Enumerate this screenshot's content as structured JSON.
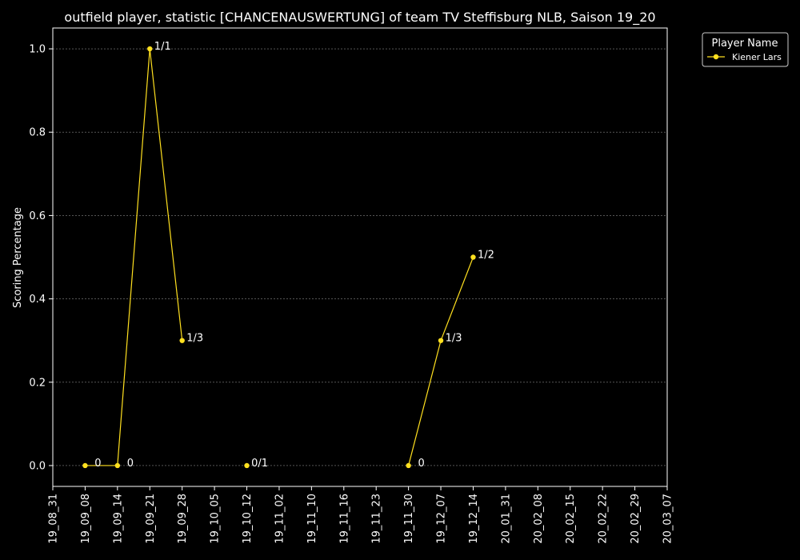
{
  "chart_data": {
    "type": "line",
    "title": "outfield player, statistic [CHANCENAUSWERTUNG] of team TV Steffisburg NLB, Saison 19_20",
    "xlabel": "",
    "ylabel": "Scoring Percentage",
    "x_ticks": [
      "19_08_31",
      "19_09_08",
      "19_09_14",
      "19_09_21",
      "19_09_28",
      "19_10_05",
      "19_10_12",
      "19_11_02",
      "19_11_10",
      "19_11_16",
      "19_11_23",
      "19_11_30",
      "19_12_07",
      "19_12_14",
      "20_01_31",
      "20_02_08",
      "20_02_15",
      "20_02_22",
      "20_02_29",
      "20_03_07"
    ],
    "y_ticks": [
      "0.0",
      "0.2",
      "0.4",
      "0.6",
      "0.8",
      "1.0"
    ],
    "ylim": [
      -0.05,
      1.05
    ],
    "grid": true,
    "legend": {
      "title": "Player Name",
      "placement": "outside-top-right"
    },
    "colors": {
      "background": "#000000",
      "series": "#ffe01f",
      "grid": "#888888",
      "axes": "#ffffff"
    },
    "series": [
      {
        "name": "Kiener Lars",
        "points": [
          {
            "x": "19_09_08",
            "y": 0.0,
            "label": "0"
          },
          {
            "x": "19_09_14",
            "y": 0.0,
            "label": "0"
          },
          {
            "x": "19_09_21",
            "y": 1.0,
            "label": "1/1"
          },
          {
            "x": "19_09_28",
            "y": 0.3,
            "label": "1/3"
          },
          {
            "x": "19_10_12",
            "y": 0.0,
            "label": "0/1",
            "connected": false
          },
          {
            "x": "19_11_30",
            "y": 0.0,
            "label": "0"
          },
          {
            "x": "19_12_07",
            "y": 0.3,
            "label": "1/3"
          },
          {
            "x": "19_12_14",
            "y": 0.5,
            "label": "1/2"
          }
        ]
      }
    ]
  }
}
